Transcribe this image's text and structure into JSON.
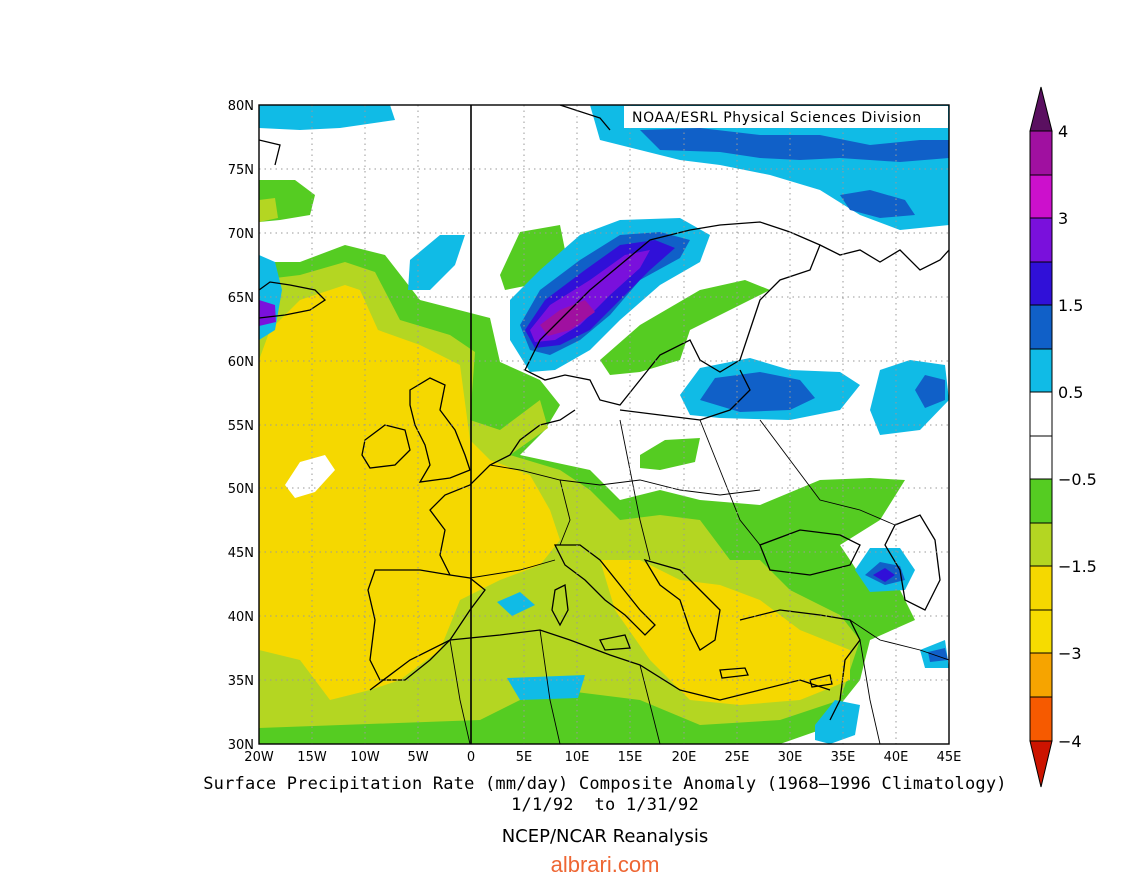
{
  "map": {
    "source": "NOAA/ESRL Physical Sciences Division",
    "lon_ticks": [
      "20W",
      "15W",
      "10W",
      "5W",
      "0",
      "5E",
      "10E",
      "15E",
      "20E",
      "25E",
      "30E",
      "35E",
      "40E",
      "45E"
    ],
    "lat_ticks": [
      "80N",
      "75N",
      "70N",
      "65N",
      "60N",
      "55N",
      "50N",
      "45N",
      "40N",
      "35N",
      "30N"
    ],
    "extent": {
      "lon": [
        -20,
        45
      ],
      "lat": [
        30,
        80
      ]
    },
    "prime_meridian_line": true,
    "grid": "dotted"
  },
  "colorbar": {
    "labels": [
      "4",
      "3",
      "1.5",
      "0.5",
      "−0.5",
      "−1.5",
      "−3",
      "−4"
    ],
    "bands": [
      {
        "range": "> 4",
        "color": "#5a1060"
      },
      {
        "range": "3 to 4",
        "color": "#a010a0"
      },
      {
        "range": "2 to 3",
        "color": "#cc10cc"
      },
      {
        "range": "1.5 to 2",
        "color": "#7a10dc"
      },
      {
        "range": "1 to 1.5",
        "color": "#3010d8"
      },
      {
        "range": "0.5 to 1",
        "color": "#1060c8"
      },
      {
        "range": "0.25 to 0.5",
        "color": "#10bbe6"
      },
      {
        "range": "0 to 0.25",
        "color": "#ffffff"
      },
      {
        "range": "-0.25 to 0",
        "color": "#ffffff"
      },
      {
        "range": "-0.5 to -0.25",
        "color": "#55cc22"
      },
      {
        "range": "-1 to -0.5",
        "color": "#b4d622"
      },
      {
        "range": "-1.5 to -1",
        "color": "#f5d800"
      },
      {
        "range": "-2 to -1.5",
        "color": "#f6dc00"
      },
      {
        "range": "-3 to -2",
        "color": "#f6a400"
      },
      {
        "range": "-4 to -3",
        "color": "#f65a00"
      },
      {
        "range": "< -4",
        "color": "#cc1400"
      }
    ]
  },
  "caption": {
    "line1": "Surface Precipitation Rate (mm/day) Composite Anomaly (1968‒1996 Climatology)",
    "line2": "1/1/92  to 1/31/92"
  },
  "credit": "NCEP/NCAR Reanalysis",
  "watermark": "albrari.com"
}
